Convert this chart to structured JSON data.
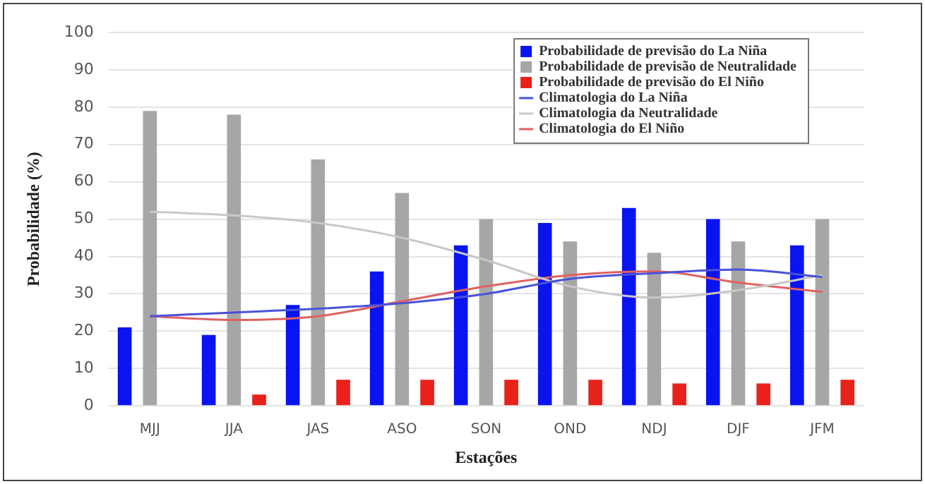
{
  "chart_data": {
    "type": "bar",
    "xlabel": "Estações",
    "ylabel": "Probabilidade (%)",
    "categories": [
      "MJJ",
      "JJA",
      "JAS",
      "ASO",
      "SON",
      "OND",
      "NDJ",
      "DJF",
      "JFM"
    ],
    "series": [
      {
        "name": "Probabilidade de previsão do La Niña",
        "color": "#0a14f0",
        "values": [
          21,
          19,
          27,
          36,
          43,
          49,
          53,
          50,
          43
        ]
      },
      {
        "name": "Probabilidade de previsão de Neutralidade",
        "color": "#a6a6a6",
        "values": [
          79,
          78,
          66,
          57,
          50,
          44,
          41,
          44,
          50
        ]
      },
      {
        "name": "Probabilidade de previsão do El Niño",
        "color": "#e8211a",
        "values": [
          0,
          3,
          7,
          7,
          7,
          7,
          6,
          6,
          7
        ]
      },
      {
        "name": "Climatologia do La Niña",
        "type": "line",
        "color": "#4a52d8",
        "values": [
          24,
          25,
          26,
          27.5,
          30,
          34,
          35.5,
          36.5,
          34.5
        ]
      },
      {
        "name": "Climatologia da Neutralidade",
        "type": "line",
        "color": "#c8c8c8",
        "values": [
          52,
          51,
          49,
          45,
          39,
          32,
          29,
          31,
          35
        ]
      },
      {
        "name": "Climatologia do El Niño",
        "type": "line",
        "color": "#e06060",
        "values": [
          24,
          23,
          24,
          28,
          32,
          35,
          36,
          33,
          30.5
        ]
      }
    ],
    "ylim": [
      0,
      100
    ],
    "yticks": [
      0,
      10,
      20,
      30,
      40,
      50,
      60,
      70,
      80,
      90,
      100
    ],
    "grid": "y",
    "legend": "top right",
    "marker": "none",
    "line_style": "solid"
  }
}
